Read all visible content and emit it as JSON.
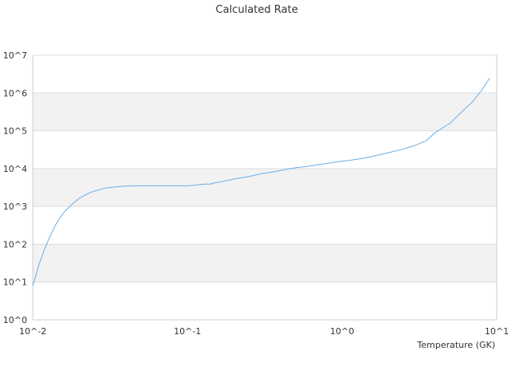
{
  "chart_data": {
    "type": "line",
    "title": "Calculated Rate",
    "xlabel": "Temperature (GK)",
    "ylabel": "",
    "x_scale": "log",
    "y_scale": "log",
    "xlim": [
      0.01,
      10
    ],
    "ylim": [
      1,
      10000000
    ],
    "x_tick_labels": [
      "10^-2",
      "10^-1",
      "10^0",
      "10^1"
    ],
    "y_tick_labels": [
      "10^0",
      "10^1",
      "10^2",
      "10^3",
      "10^4",
      "10^5",
      "10^6",
      "10^7"
    ],
    "grid": "horizontal alternating bands",
    "legend": "none",
    "colors": {
      "series": "#6aaee8",
      "band": "#f2f2f2",
      "gridline": "#dddddd",
      "axis": "#cccccc"
    },
    "series": [
      {
        "x": [
          0.01,
          0.011,
          0.012,
          0.013,
          0.014,
          0.015,
          0.016,
          0.017,
          0.018,
          0.019,
          0.02,
          0.022,
          0.024,
          0.026,
          0.028,
          0.03,
          0.035,
          0.04,
          0.045,
          0.05,
          0.06,
          0.07,
          0.08,
          0.09,
          0.1,
          0.11,
          0.12,
          0.13,
          0.14,
          0.15,
          0.16,
          0.18,
          0.2,
          0.25,
          0.3,
          0.35,
          0.4,
          0.45,
          0.5,
          0.6,
          0.7,
          0.8,
          0.9,
          1.0,
          1.25,
          1.5,
          1.75,
          2.0,
          2.5,
          3.0,
          3.5,
          4.0,
          5.0,
          6.0,
          7.0,
          8.0,
          9.0
        ],
        "y": [
          8,
          30,
          80,
          170,
          320,
          500,
          720,
          920,
          1150,
          1380,
          1650,
          2050,
          2400,
          2650,
          2900,
          3100,
          3300,
          3450,
          3500,
          3500,
          3500,
          3500,
          3500,
          3500,
          3500,
          3600,
          3800,
          3900,
          3900,
          4200,
          4400,
          4800,
          5300,
          6200,
          7300,
          8000,
          8900,
          9800,
          10500,
          11500,
          12700,
          13700,
          14800,
          15700,
          17600,
          20200,
          23300,
          26400,
          33000,
          42000,
          55000,
          90000,
          160000,
          330000,
          600000,
          1200000,
          2500000
        ]
      }
    ]
  }
}
